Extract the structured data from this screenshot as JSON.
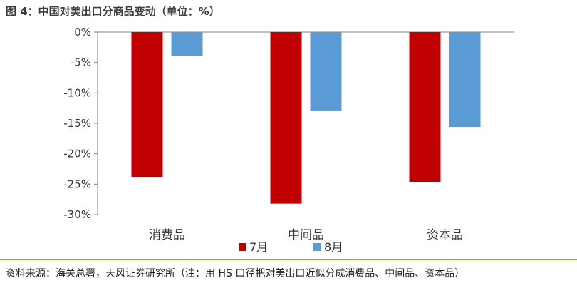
{
  "figure": {
    "title": "图 4：中国对美出口分商品变动（单位：%）",
    "source": "资料来源：海关总署，天风证券研究所（注：用 HS 口径把对美出口近似分成消费品、中间品、资本品）"
  },
  "colors": {
    "accent_rule": "#e58a3a",
    "series_july": "#c00000",
    "series_aug": "#5b9bd5"
  },
  "chart_data": {
    "type": "bar",
    "title": "",
    "xlabel": "",
    "ylabel": "",
    "categories": [
      "消费品",
      "中间品",
      "资本品"
    ],
    "series": [
      {
        "name": "7月",
        "values": [
          -23.8,
          -28.2,
          -24.7
        ]
      },
      {
        "name": "8月",
        "values": [
          -3.9,
          -13.0,
          -15.6
        ]
      }
    ],
    "ylim": [
      -30,
      0
    ],
    "yticks": [
      0,
      -5,
      -10,
      -15,
      -20,
      -25,
      -30
    ],
    "ytick_labels": [
      "0%",
      "-5%",
      "-10%",
      "-15%",
      "-20%",
      "-25%",
      "-30%"
    ],
    "grid": false,
    "legend_position": "bottom"
  }
}
